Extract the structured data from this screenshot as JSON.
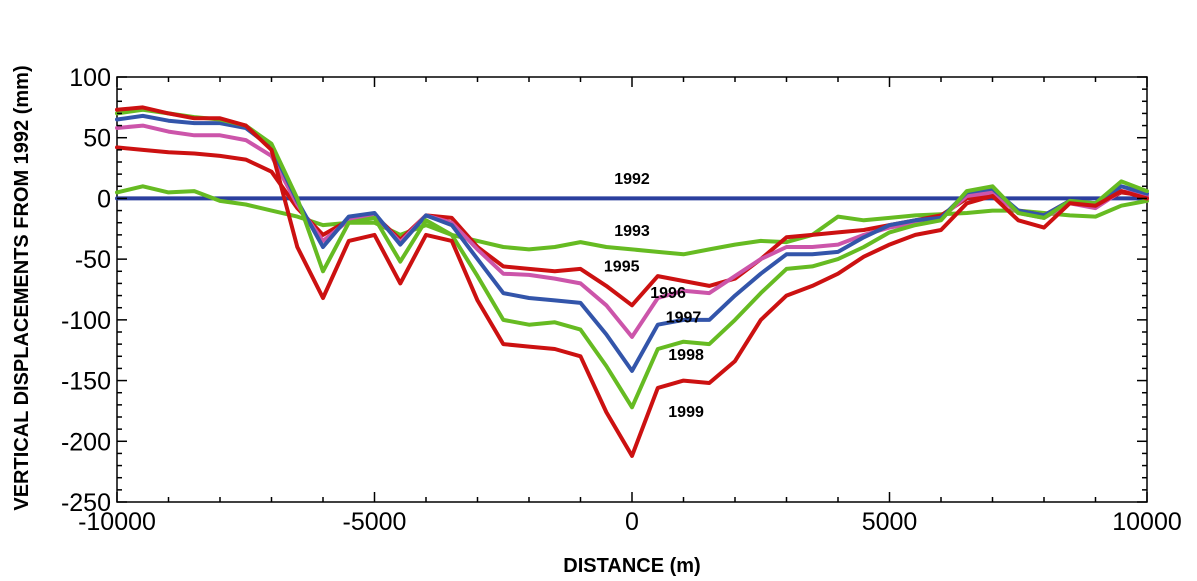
{
  "chart_data": {
    "type": "line",
    "title": "",
    "xlabel": "DISTANCE (m)",
    "ylabel": "VERTICAL DISPLACEMENTS FROM 1992 (mm)",
    "xlim": [
      -10000,
      10000
    ],
    "ylim": [
      -250,
      100
    ],
    "x_ticks": [
      -10000,
      -5000,
      0,
      5000,
      10000
    ],
    "y_ticks": [
      100,
      50,
      0,
      -50,
      -100,
      -150,
      -200,
      -250
    ],
    "grid": false,
    "legend": "inline labels",
    "series": [
      {
        "name": "1992",
        "color": "#2b3f9e",
        "points": [
          [
            -10000,
            0
          ],
          [
            10000,
            0
          ]
        ]
      },
      {
        "name": "1993",
        "color": "#66bb22",
        "points": [
          [
            -10000,
            5
          ],
          [
            -9500,
            10
          ],
          [
            -9000,
            5
          ],
          [
            -8500,
            6
          ],
          [
            -8000,
            -2
          ],
          [
            -7500,
            -5
          ],
          [
            -7000,
            -10
          ],
          [
            -6500,
            -15
          ],
          [
            -6000,
            -22
          ],
          [
            -5500,
            -20
          ],
          [
            -5000,
            -20
          ],
          [
            -4500,
            -30
          ],
          [
            -4000,
            -22
          ],
          [
            -3500,
            -30
          ],
          [
            -3000,
            -35
          ],
          [
            -2500,
            -40
          ],
          [
            -2000,
            -42
          ],
          [
            -1500,
            -40
          ],
          [
            -1000,
            -36
          ],
          [
            -500,
            -40
          ],
          [
            0,
            -42
          ],
          [
            500,
            -44
          ],
          [
            1000,
            -46
          ],
          [
            1500,
            -42
          ],
          [
            2000,
            -38
          ],
          [
            2500,
            -35
          ],
          [
            3000,
            -36
          ],
          [
            3500,
            -30
          ],
          [
            4000,
            -15
          ],
          [
            4500,
            -18
          ],
          [
            5000,
            -16
          ],
          [
            5500,
            -14
          ],
          [
            6000,
            -13
          ],
          [
            6500,
            -12
          ],
          [
            7000,
            -10
          ],
          [
            7500,
            -10
          ],
          [
            8000,
            -12
          ],
          [
            8500,
            -14
          ],
          [
            9000,
            -15
          ],
          [
            9500,
            -6
          ],
          [
            10000,
            -2
          ]
        ]
      },
      {
        "name": "1995",
        "color": "#cc1111",
        "points": [
          [
            -10000,
            42
          ],
          [
            -9500,
            40
          ],
          [
            -9000,
            38
          ],
          [
            -8500,
            37
          ],
          [
            -8000,
            35
          ],
          [
            -7500,
            32
          ],
          [
            -7000,
            22
          ],
          [
            -6500,
            -8
          ],
          [
            -6000,
            -30
          ],
          [
            -5500,
            -18
          ],
          [
            -5000,
            -14
          ],
          [
            -4500,
            -34
          ],
          [
            -4000,
            -14
          ],
          [
            -3500,
            -16
          ],
          [
            -3000,
            -40
          ],
          [
            -2500,
            -56
          ],
          [
            -2000,
            -58
          ],
          [
            -1500,
            -60
          ],
          [
            -1000,
            -58
          ],
          [
            -500,
            -72
          ],
          [
            0,
            -88
          ],
          [
            500,
            -64
          ],
          [
            1000,
            -68
          ],
          [
            1500,
            -72
          ],
          [
            2000,
            -66
          ],
          [
            2500,
            -50
          ],
          [
            3000,
            -32
          ],
          [
            3500,
            -30
          ],
          [
            4000,
            -28
          ],
          [
            4500,
            -26
          ],
          [
            5000,
            -22
          ],
          [
            5500,
            -18
          ],
          [
            6000,
            -14
          ],
          [
            6500,
            0
          ],
          [
            7000,
            3
          ],
          [
            7500,
            -10
          ],
          [
            8000,
            -14
          ],
          [
            8500,
            -2
          ],
          [
            9000,
            -6
          ],
          [
            9500,
            5
          ],
          [
            10000,
            2
          ]
        ]
      },
      {
        "name": "1996",
        "color": "#cc55aa",
        "points": [
          [
            -10000,
            58
          ],
          [
            -9500,
            60
          ],
          [
            -9000,
            55
          ],
          [
            -8500,
            52
          ],
          [
            -8000,
            52
          ],
          [
            -7500,
            48
          ],
          [
            -7000,
            35
          ],
          [
            -6500,
            -5
          ],
          [
            -6000,
            -35
          ],
          [
            -5500,
            -18
          ],
          [
            -5000,
            -14
          ],
          [
            -4500,
            -36
          ],
          [
            -4000,
            -14
          ],
          [
            -3500,
            -20
          ],
          [
            -3000,
            -42
          ],
          [
            -2500,
            -62
          ],
          [
            -2000,
            -63
          ],
          [
            -1500,
            -66
          ],
          [
            -1000,
            -70
          ],
          [
            -500,
            -88
          ],
          [
            0,
            -114
          ],
          [
            500,
            -82
          ],
          [
            1000,
            -76
          ],
          [
            1500,
            -78
          ],
          [
            2000,
            -64
          ],
          [
            2500,
            -50
          ],
          [
            3000,
            -40
          ],
          [
            3500,
            -40
          ],
          [
            4000,
            -38
          ],
          [
            4500,
            -30
          ],
          [
            5000,
            -24
          ],
          [
            5500,
            -20
          ],
          [
            6000,
            -16
          ],
          [
            6500,
            2
          ],
          [
            7000,
            5
          ],
          [
            7500,
            -12
          ],
          [
            8000,
            -16
          ],
          [
            8500,
            -4
          ],
          [
            9000,
            -8
          ],
          [
            9500,
            6
          ],
          [
            10000,
            2
          ]
        ]
      },
      {
        "name": "1997",
        "color": "#3355aa",
        "points": [
          [
            -10000,
            65
          ],
          [
            -9500,
            68
          ],
          [
            -9000,
            64
          ],
          [
            -8500,
            62
          ],
          [
            -8000,
            62
          ],
          [
            -7500,
            58
          ],
          [
            -7000,
            42
          ],
          [
            -6500,
            -2
          ],
          [
            -6000,
            -40
          ],
          [
            -5500,
            -15
          ],
          [
            -5000,
            -12
          ],
          [
            -4500,
            -38
          ],
          [
            -4000,
            -14
          ],
          [
            -3500,
            -22
          ],
          [
            -3000,
            -50
          ],
          [
            -2500,
            -78
          ],
          [
            -2000,
            -82
          ],
          [
            -1500,
            -84
          ],
          [
            -1000,
            -86
          ],
          [
            -500,
            -112
          ],
          [
            0,
            -142
          ],
          [
            500,
            -104
          ],
          [
            1000,
            -100
          ],
          [
            1500,
            -100
          ],
          [
            2000,
            -80
          ],
          [
            2500,
            -62
          ],
          [
            3000,
            -46
          ],
          [
            3500,
            -46
          ],
          [
            4000,
            -44
          ],
          [
            4500,
            -32
          ],
          [
            5000,
            -22
          ],
          [
            5500,
            -18
          ],
          [
            6000,
            -16
          ],
          [
            6500,
            5
          ],
          [
            7000,
            8
          ],
          [
            7500,
            -10
          ],
          [
            8000,
            -14
          ],
          [
            8500,
            -2
          ],
          [
            9000,
            -4
          ],
          [
            9500,
            10
          ],
          [
            10000,
            4
          ]
        ]
      },
      {
        "name": "1998",
        "color": "#66bb22",
        "points": [
          [
            -10000,
            70
          ],
          [
            -9500,
            73
          ],
          [
            -9000,
            70
          ],
          [
            -8500,
            67
          ],
          [
            -8000,
            65
          ],
          [
            -7500,
            60
          ],
          [
            -7000,
            45
          ],
          [
            -6500,
            0
          ],
          [
            -6000,
            -60
          ],
          [
            -5500,
            -20
          ],
          [
            -5000,
            -16
          ],
          [
            -4500,
            -52
          ],
          [
            -4000,
            -18
          ],
          [
            -3500,
            -30
          ],
          [
            -3000,
            -64
          ],
          [
            -2500,
            -100
          ],
          [
            -2000,
            -104
          ],
          [
            -1500,
            -102
          ],
          [
            -1000,
            -108
          ],
          [
            -500,
            -138
          ],
          [
            0,
            -172
          ],
          [
            500,
            -124
          ],
          [
            1000,
            -118
          ],
          [
            1500,
            -120
          ],
          [
            2000,
            -100
          ],
          [
            2500,
            -78
          ],
          [
            3000,
            -58
          ],
          [
            3500,
            -56
          ],
          [
            4000,
            -50
          ],
          [
            4500,
            -40
          ],
          [
            5000,
            -28
          ],
          [
            5500,
            -22
          ],
          [
            6000,
            -18
          ],
          [
            6500,
            6
          ],
          [
            7000,
            10
          ],
          [
            7500,
            -12
          ],
          [
            8000,
            -16
          ],
          [
            8500,
            -2
          ],
          [
            9000,
            -4
          ],
          [
            9500,
            14
          ],
          [
            10000,
            6
          ]
        ]
      },
      {
        "name": "1999",
        "color": "#cc1111",
        "points": [
          [
            -10000,
            73
          ],
          [
            -9500,
            75
          ],
          [
            -9000,
            70
          ],
          [
            -8500,
            66
          ],
          [
            -8000,
            66
          ],
          [
            -7500,
            60
          ],
          [
            -7000,
            40
          ],
          [
            -6500,
            -40
          ],
          [
            -6000,
            -82
          ],
          [
            -5500,
            -35
          ],
          [
            -5000,
            -30
          ],
          [
            -4500,
            -70
          ],
          [
            -4000,
            -30
          ],
          [
            -3500,
            -35
          ],
          [
            -3000,
            -84
          ],
          [
            -2500,
            -120
          ],
          [
            -2000,
            -122
          ],
          [
            -1500,
            -124
          ],
          [
            -1000,
            -130
          ],
          [
            -500,
            -176
          ],
          [
            0,
            -212
          ],
          [
            500,
            -156
          ],
          [
            1000,
            -150
          ],
          [
            1500,
            -152
          ],
          [
            2000,
            -134
          ],
          [
            2500,
            -100
          ],
          [
            3000,
            -80
          ],
          [
            3500,
            -72
          ],
          [
            4000,
            -62
          ],
          [
            4500,
            -48
          ],
          [
            5000,
            -38
          ],
          [
            5500,
            -30
          ],
          [
            6000,
            -26
          ],
          [
            6500,
            -4
          ],
          [
            7000,
            2
          ],
          [
            7500,
            -18
          ],
          [
            8000,
            -24
          ],
          [
            8500,
            -4
          ],
          [
            9000,
            -6
          ],
          [
            9500,
            6
          ],
          [
            10000,
            0
          ]
        ]
      }
    ],
    "annotations": [
      {
        "text": "1992",
        "x": 0,
        "y": 12
      },
      {
        "text": "1993",
        "x": 0,
        "y": -31
      },
      {
        "text": "1995",
        "x": -200,
        "y": -60
      },
      {
        "text": "1996",
        "x": 700,
        "y": -82
      },
      {
        "text": "1997",
        "x": 1000,
        "y": -102
      },
      {
        "text": "1998",
        "x": 1050,
        "y": -133
      },
      {
        "text": "1999",
        "x": 1050,
        "y": -180
      }
    ]
  }
}
